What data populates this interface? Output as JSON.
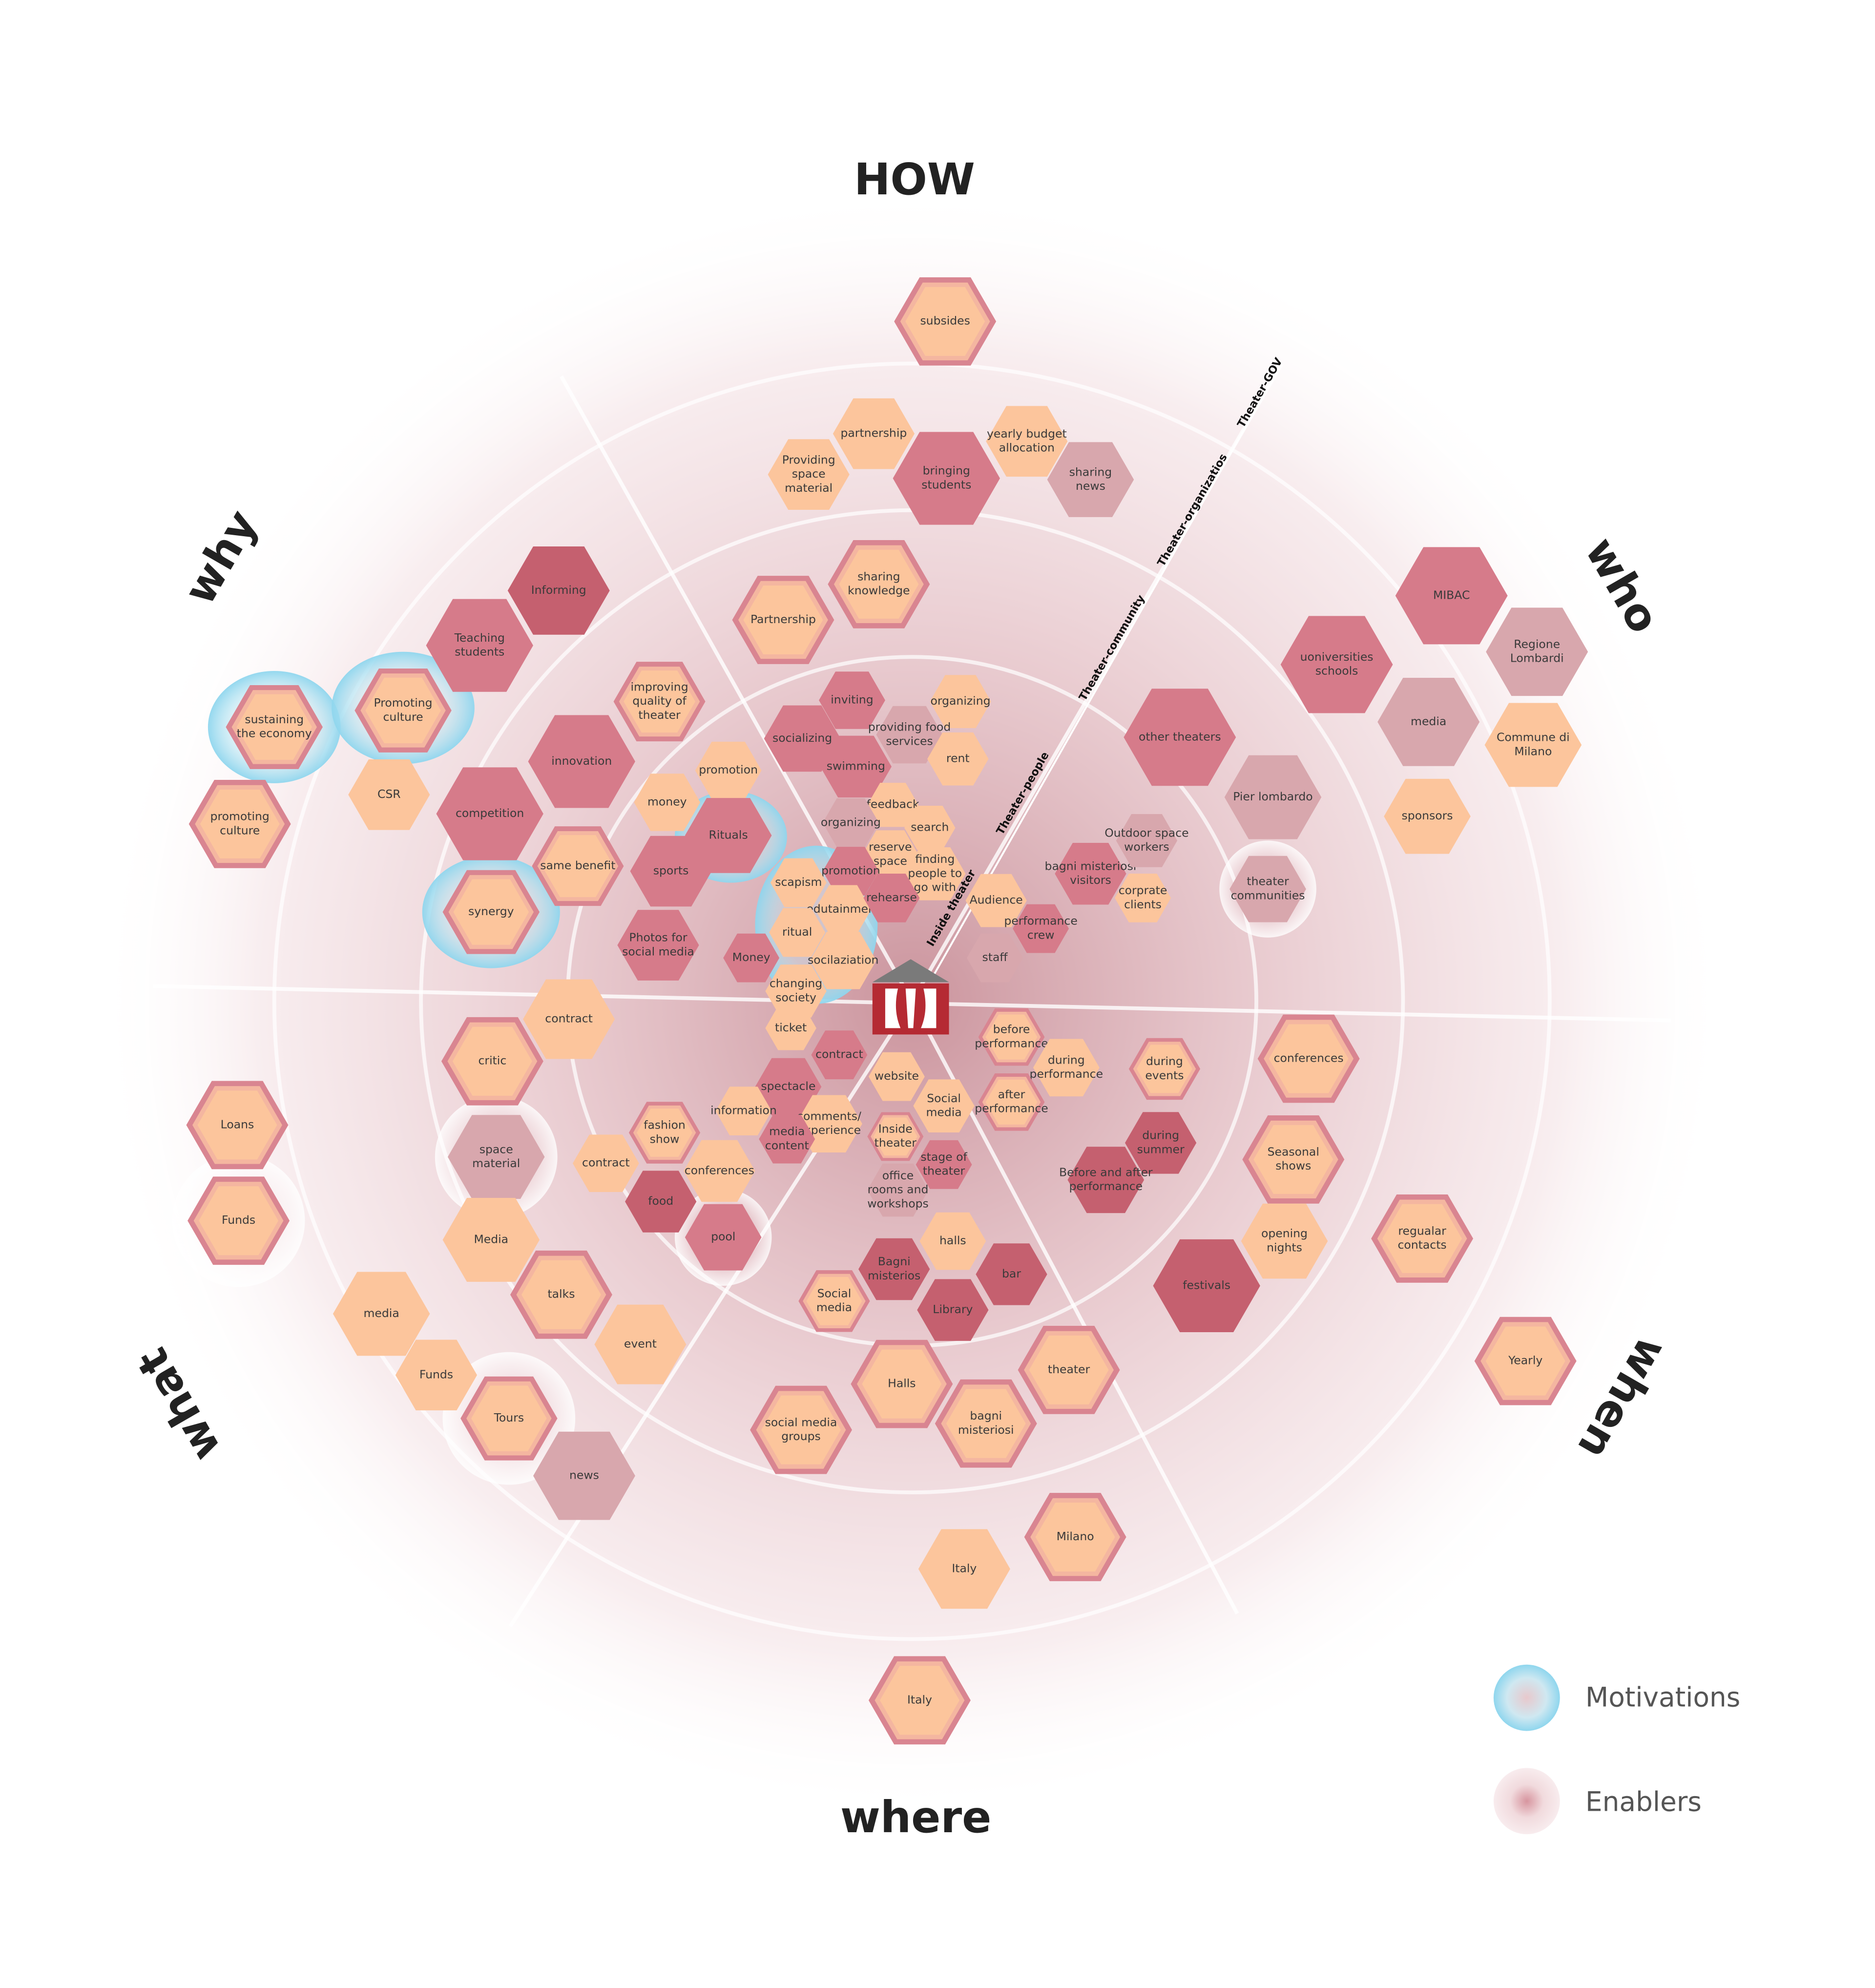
{
  "section_labels": [
    "HOW",
    "who",
    "when",
    "where",
    "what",
    "why"
  ],
  "ring_labels": [
    "Theater-GOV",
    "Theater-organizatios",
    "Theater-community",
    "Theater-people",
    "Inside theater"
  ],
  "legend": [
    "Motivations",
    "Enablers"
  ],
  "nodes": [
    {
      "label": [
        "subsides"
      ]
    },
    {
      "label": [
        "partnership"
      ]
    },
    {
      "label": [
        "Providing",
        "space",
        "material"
      ]
    },
    {
      "label": [
        "bringing",
        "students"
      ]
    },
    {
      "label": [
        "yearly budget",
        "allocation"
      ]
    },
    {
      "label": [
        "sharing",
        "news"
      ]
    },
    {
      "label": [
        "sharing",
        "knowledge"
      ]
    },
    {
      "label": [
        "Partnership"
      ]
    },
    {
      "label": [
        "Informing"
      ]
    },
    {
      "label": [
        "Teaching",
        "students"
      ]
    },
    {
      "label": [
        "improving",
        "quality of",
        "theater"
      ]
    },
    {
      "label": [
        "sustaining",
        "the economy"
      ]
    },
    {
      "label": [
        "Promoting",
        "culture"
      ]
    },
    {
      "label": [
        "CSR"
      ]
    },
    {
      "label": [
        "innovation"
      ]
    },
    {
      "label": [
        "promoting",
        "culture"
      ]
    },
    {
      "label": [
        "competition"
      ]
    },
    {
      "label": [
        "same benefit"
      ]
    },
    {
      "label": [
        "synergy"
      ]
    },
    {
      "label": [
        "promotion"
      ]
    },
    {
      "label": [
        "money"
      ]
    },
    {
      "label": [
        "Rituals"
      ]
    },
    {
      "label": [
        "sports"
      ]
    },
    {
      "label": [
        "Photos for",
        "social media"
      ]
    },
    {
      "label": [
        "inviting"
      ]
    },
    {
      "label": [
        "organizing"
      ]
    },
    {
      "label": [
        "socializing"
      ]
    },
    {
      "label": [
        "providing food",
        "services"
      ]
    },
    {
      "label": [
        "swimming"
      ]
    },
    {
      "label": [
        "rent"
      ]
    },
    {
      "label": [
        "feedback"
      ]
    },
    {
      "label": [
        "organizing"
      ]
    },
    {
      "label": [
        "search"
      ]
    },
    {
      "label": [
        "reserve",
        "space"
      ]
    },
    {
      "label": [
        "finding",
        "people to",
        "go with"
      ]
    },
    {
      "label": [
        "promotion"
      ]
    },
    {
      "label": [
        "scapism"
      ]
    },
    {
      "label": [
        "edutainment"
      ]
    },
    {
      "label": [
        "rehearse"
      ]
    },
    {
      "label": [
        "ritual"
      ]
    },
    {
      "label": [
        "Money"
      ]
    },
    {
      "label": [
        "socilaziation"
      ]
    },
    {
      "label": [
        "changing",
        "society"
      ]
    },
    {
      "label": [
        "Audience"
      ]
    },
    {
      "label": [
        "performance",
        "crew"
      ]
    },
    {
      "label": [
        "staff"
      ]
    },
    {
      "label": [
        "bagni misteriosi",
        "visitors"
      ]
    },
    {
      "label": [
        "Outdoor space",
        "workers"
      ]
    },
    {
      "label": [
        "corprate",
        "clients"
      ]
    },
    {
      "label": [
        "other theaters"
      ]
    },
    {
      "label": [
        "Pier lombardo"
      ]
    },
    {
      "label": [
        "theater",
        "communities"
      ]
    },
    {
      "label": [
        "MIBAC"
      ]
    },
    {
      "label": [
        "Regione",
        "Lombardi"
      ]
    },
    {
      "label": [
        "uoniversities",
        "schools"
      ]
    },
    {
      "label": [
        "media"
      ]
    },
    {
      "label": [
        "Commune di",
        "Milano"
      ]
    },
    {
      "label": [
        "sponsors"
      ]
    },
    {
      "label": [
        "contract"
      ]
    },
    {
      "label": [
        "critic"
      ]
    },
    {
      "label": [
        "Loans"
      ]
    },
    {
      "label": [
        "space",
        "material"
      ]
    },
    {
      "label": [
        "Funds"
      ]
    },
    {
      "label": [
        "Media"
      ]
    },
    {
      "label": [
        "talks"
      ]
    },
    {
      "label": [
        "media"
      ]
    },
    {
      "label": [
        "event"
      ]
    },
    {
      "label": [
        "Funds"
      ]
    },
    {
      "label": [
        "Tours"
      ]
    },
    {
      "label": [
        "news"
      ]
    },
    {
      "label": [
        "ticket"
      ]
    },
    {
      "label": [
        "contract"
      ]
    },
    {
      "label": [
        "spectacle"
      ]
    },
    {
      "label": [
        "website"
      ]
    },
    {
      "label": [
        "Social",
        "media"
      ]
    },
    {
      "label": [
        "information"
      ]
    },
    {
      "label": [
        "comments/",
        "experience"
      ]
    },
    {
      "label": [
        "media",
        "content"
      ]
    },
    {
      "label": [
        "fashion",
        "show"
      ]
    },
    {
      "label": [
        "contract"
      ]
    },
    {
      "label": [
        "conferences"
      ]
    },
    {
      "label": [
        "food"
      ]
    },
    {
      "label": [
        "pool"
      ]
    },
    {
      "label": [
        "Inside",
        "theater"
      ]
    },
    {
      "label": [
        "stage of",
        "theater"
      ]
    },
    {
      "label": [
        "office",
        "rooms and",
        "workshops"
      ]
    },
    {
      "label": [
        "halls"
      ]
    },
    {
      "label": [
        "bar"
      ]
    },
    {
      "label": [
        "Bagni",
        "misterios"
      ]
    },
    {
      "label": [
        "Social",
        "media"
      ]
    },
    {
      "label": [
        "Library"
      ]
    },
    {
      "label": [
        "Halls"
      ]
    },
    {
      "label": [
        "theater"
      ]
    },
    {
      "label": [
        "social media",
        "groups"
      ]
    },
    {
      "label": [
        "bagni",
        "misteriosi"
      ]
    },
    {
      "label": [
        "Italy"
      ]
    },
    {
      "label": [
        "Milano"
      ]
    },
    {
      "label": [
        "Italy"
      ]
    },
    {
      "label": [
        "before",
        "performance"
      ]
    },
    {
      "label": [
        "during",
        "performance"
      ]
    },
    {
      "label": [
        "after",
        "performance"
      ]
    },
    {
      "label": [
        "during",
        "events"
      ]
    },
    {
      "label": [
        "during",
        "summer"
      ]
    },
    {
      "label": [
        "Before  and after",
        "performance"
      ]
    },
    {
      "label": [
        "conferences"
      ]
    },
    {
      "label": [
        "Seasonal",
        "shows"
      ]
    },
    {
      "label": [
        "opening",
        "nights"
      ]
    },
    {
      "label": [
        "festivals"
      ]
    },
    {
      "label": [
        "regualar",
        "contacts"
      ]
    },
    {
      "label": [
        "Yearly"
      ]
    }
  ]
}
